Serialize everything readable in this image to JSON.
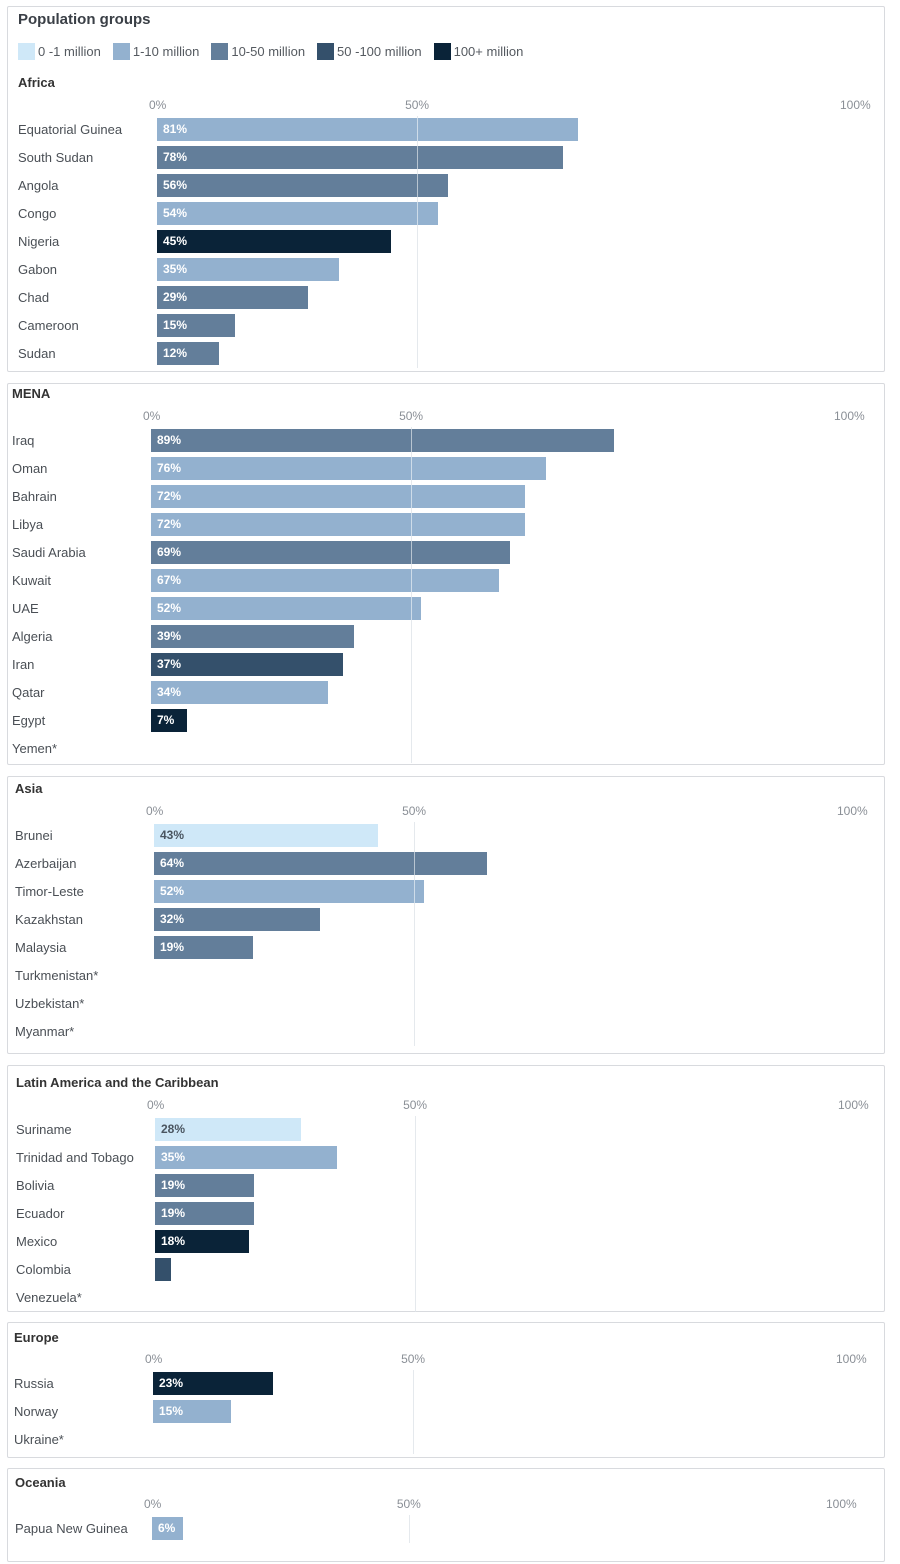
{
  "legend": {
    "title": "Population groups",
    "items": [
      {
        "label": "0 -1 million",
        "color": "#cfe8f8",
        "key": "g1"
      },
      {
        "label": "1-10 million",
        "color": "#93b1cf",
        "key": "g2"
      },
      {
        "label": "10-50 million",
        "color": "#637e9a",
        "key": "g3"
      },
      {
        "label": "50 -100 million",
        "color": "#34506b",
        "key": "g4"
      },
      {
        "label": "100+ million",
        "color": "#0a2338",
        "key": "g5"
      }
    ]
  },
  "axis_ticks": [
    "0%",
    "50%",
    "100%"
  ],
  "chart_data": [
    {
      "type": "bar",
      "title": "Africa",
      "xlim": [
        0,
        100
      ],
      "unit": "%",
      "rows": [
        {
          "country": "Equatorial Guinea",
          "value": 81,
          "label": "81%",
          "group": "g2"
        },
        {
          "country": "South Sudan",
          "value": 78,
          "label": "78%",
          "group": "g3"
        },
        {
          "country": "Angola",
          "value": 56,
          "label": "56%",
          "group": "g3"
        },
        {
          "country": "Congo",
          "value": 54,
          "label": "54%",
          "group": "g2"
        },
        {
          "country": "Nigeria",
          "value": 45,
          "label": "45%",
          "group": "g5"
        },
        {
          "country": "Gabon",
          "value": 35,
          "label": "35%",
          "group": "g2"
        },
        {
          "country": "Chad",
          "value": 29,
          "label": "29%",
          "group": "g3"
        },
        {
          "country": "Cameroon",
          "value": 15,
          "label": "15%",
          "group": "g3"
        },
        {
          "country": "Sudan",
          "value": 12,
          "label": "12%",
          "group": "g3"
        }
      ]
    },
    {
      "type": "bar",
      "title": "MENA",
      "xlim": [
        0,
        100
      ],
      "unit": "%",
      "rows": [
        {
          "country": "Iraq",
          "value": 89,
          "label": "89%",
          "group": "g3"
        },
        {
          "country": "Oman",
          "value": 76,
          "label": "76%",
          "group": "g2"
        },
        {
          "country": "Bahrain",
          "value": 72,
          "label": "72%",
          "group": "g2"
        },
        {
          "country": "Libya",
          "value": 72,
          "label": "72%",
          "group": "g2"
        },
        {
          "country": "Saudi Arabia",
          "value": 69,
          "label": "69%",
          "group": "g3"
        },
        {
          "country": "Kuwait",
          "value": 67,
          "label": "67%",
          "group": "g2"
        },
        {
          "country": "UAE",
          "value": 52,
          "label": "52%",
          "group": "g2"
        },
        {
          "country": "Algeria",
          "value": 39,
          "label": "39%",
          "group": "g3"
        },
        {
          "country": "Iran",
          "value": 37,
          "label": "37%",
          "group": "g4"
        },
        {
          "country": "Qatar",
          "value": 34,
          "label": "34%",
          "group": "g2"
        },
        {
          "country": "Egypt",
          "value": 7,
          "label": "7%",
          "group": "g5"
        },
        {
          "country": "Yemen*",
          "value": null,
          "label": "",
          "group": ""
        }
      ]
    },
    {
      "type": "bar",
      "title": "Asia",
      "xlim": [
        0,
        100
      ],
      "unit": "%",
      "rows": [
        {
          "country": "Brunei",
          "value": 43,
          "label": "43%",
          "group": "g1"
        },
        {
          "country": "Azerbaijan",
          "value": 64,
          "label": "64%",
          "group": "g3"
        },
        {
          "country": "Timor-Leste",
          "value": 52,
          "label": "52%",
          "group": "g2"
        },
        {
          "country": "Kazakhstan",
          "value": 32,
          "label": "32%",
          "group": "g3"
        },
        {
          "country": "Malaysia",
          "value": 19,
          "label": "19%",
          "group": "g3"
        },
        {
          "country": "Turkmenistan*",
          "value": null,
          "label": "",
          "group": ""
        },
        {
          "country": "Uzbekistan*",
          "value": null,
          "label": "",
          "group": ""
        },
        {
          "country": "Myanmar*",
          "value": null,
          "label": "",
          "group": ""
        }
      ]
    },
    {
      "type": "bar",
      "title": "Latin America and the Caribbean",
      "xlim": [
        0,
        100
      ],
      "unit": "%",
      "rows": [
        {
          "country": "Suriname",
          "value": 28,
          "label": "28%",
          "group": "g1"
        },
        {
          "country": "Trinidad and Tobago",
          "value": 35,
          "label": "35%",
          "group": "g2"
        },
        {
          "country": "Bolivia",
          "value": 19,
          "label": "19%",
          "group": "g3"
        },
        {
          "country": "Ecuador",
          "value": 19,
          "label": "19%",
          "group": "g3"
        },
        {
          "country": "Mexico",
          "value": 18,
          "label": "18%",
          "group": "g5"
        },
        {
          "country": "Colombia",
          "value": 3,
          "label": "",
          "group": "g4"
        },
        {
          "country": "Venezuela*",
          "value": null,
          "label": "",
          "group": ""
        }
      ]
    },
    {
      "type": "bar",
      "title": "Europe",
      "xlim": [
        0,
        100
      ],
      "unit": "%",
      "rows": [
        {
          "country": "Russia",
          "value": 23,
          "label": "23%",
          "group": "g5"
        },
        {
          "country": "Norway",
          "value": 15,
          "label": "15%",
          "group": "g2"
        },
        {
          "country": "Ukraine*",
          "value": null,
          "label": "",
          "group": ""
        }
      ]
    },
    {
      "type": "bar",
      "title": "Oceania",
      "xlim": [
        0,
        100
      ],
      "unit": "%",
      "rows": [
        {
          "country": "Papua New Guinea",
          "value": 6,
          "label": "6%",
          "group": "g2"
        }
      ]
    }
  ]
}
